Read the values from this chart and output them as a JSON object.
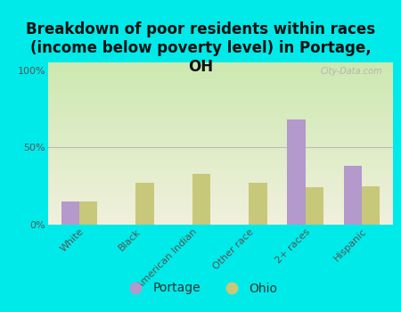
{
  "title": "Breakdown of poor residents within races\n(income below poverty level) in Portage,\nOH",
  "categories": [
    "White",
    "Black",
    "American Indian",
    "Other race",
    "2+ races",
    "Hispanic"
  ],
  "portage_values": [
    15,
    0,
    0,
    0,
    68,
    38
  ],
  "ohio_values": [
    15,
    27,
    33,
    27,
    24,
    25
  ],
  "portage_color": "#b399cc",
  "ohio_color": "#c8c87a",
  "background_color": "#00eaea",
  "plot_bg_top": "#cce8b0",
  "plot_bg_bottom": "#f0f0dc",
  "grid_color": "#bbbbbb",
  "yticks": [
    0,
    50,
    100
  ],
  "ylabels": [
    "0%",
    "50%",
    "100%"
  ],
  "ylim": [
    0,
    105
  ],
  "bar_width": 0.32,
  "watermark": "City-Data.com",
  "legend_portage": "Portage",
  "legend_ohio": "Ohio",
  "title_fontsize": 12,
  "tick_fontsize": 8,
  "legend_fontsize": 10
}
